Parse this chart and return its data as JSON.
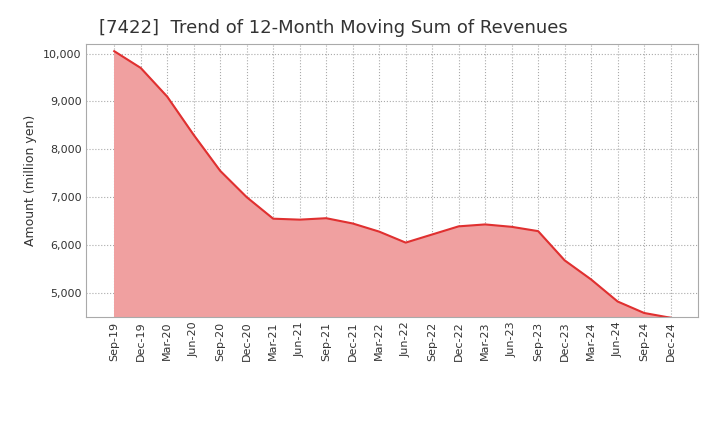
{
  "title": "[7422]  Trend of 12-Month Moving Sum of Revenues",
  "ylabel": "Amount (million yen)",
  "x_labels": [
    "Sep-19",
    "Dec-19",
    "Mar-20",
    "Jun-20",
    "Sep-20",
    "Dec-20",
    "Mar-21",
    "Jun-21",
    "Sep-21",
    "Dec-21",
    "Mar-22",
    "Jun-22",
    "Sep-22",
    "Dec-22",
    "Mar-23",
    "Jun-23",
    "Sep-23",
    "Dec-23",
    "Mar-24",
    "Jun-24",
    "Sep-24",
    "Dec-24"
  ],
  "values": [
    10050,
    9700,
    9100,
    8300,
    7550,
    7000,
    6550,
    6530,
    6560,
    6450,
    6280,
    6050,
    6220,
    6390,
    6430,
    6380,
    6290,
    5680,
    5280,
    4820,
    4580,
    4480
  ],
  "ylim": [
    4500,
    10200
  ],
  "yticks": [
    5000,
    6000,
    7000,
    8000,
    9000,
    10000
  ],
  "line_color": "#e03030",
  "fill_color": "#f0a0a0",
  "background_color": "#ffffff",
  "grid_color": "#aaaaaa",
  "title_fontsize": 13,
  "label_fontsize": 9,
  "tick_fontsize": 8
}
